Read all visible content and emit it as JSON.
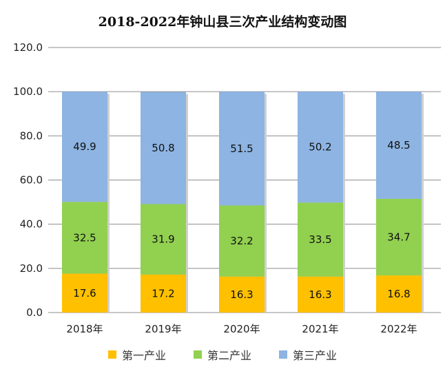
{
  "chart_data": {
    "type": "bar",
    "stacked": true,
    "title": "2018-2022年钟山县三次产业结构变动图",
    "xlabel": "",
    "ylabel": "",
    "categories": [
      "2018年",
      "2019年",
      "2020年",
      "2021年",
      "2022年"
    ],
    "series": [
      {
        "name": "第一产业",
        "color": "#FFC000",
        "values": [
          17.6,
          17.2,
          16.3,
          16.3,
          16.8
        ]
      },
      {
        "name": "第二产业",
        "color": "#92D050",
        "values": [
          32.5,
          31.9,
          32.2,
          33.5,
          34.7
        ]
      },
      {
        "name": "第三产业",
        "color": "#8DB4E2",
        "values": [
          49.9,
          50.8,
          51.5,
          50.2,
          48.5
        ]
      }
    ],
    "ylim": [
      0,
      120
    ],
    "yticks": [
      "0.0",
      "20.0",
      "40.0",
      "60.0",
      "80.0",
      "100.0",
      "120.0"
    ],
    "ytick_values": [
      0,
      20,
      40,
      60,
      80,
      100,
      120
    ],
    "grid": true,
    "data_labels": true,
    "legend_position": "bottom"
  }
}
